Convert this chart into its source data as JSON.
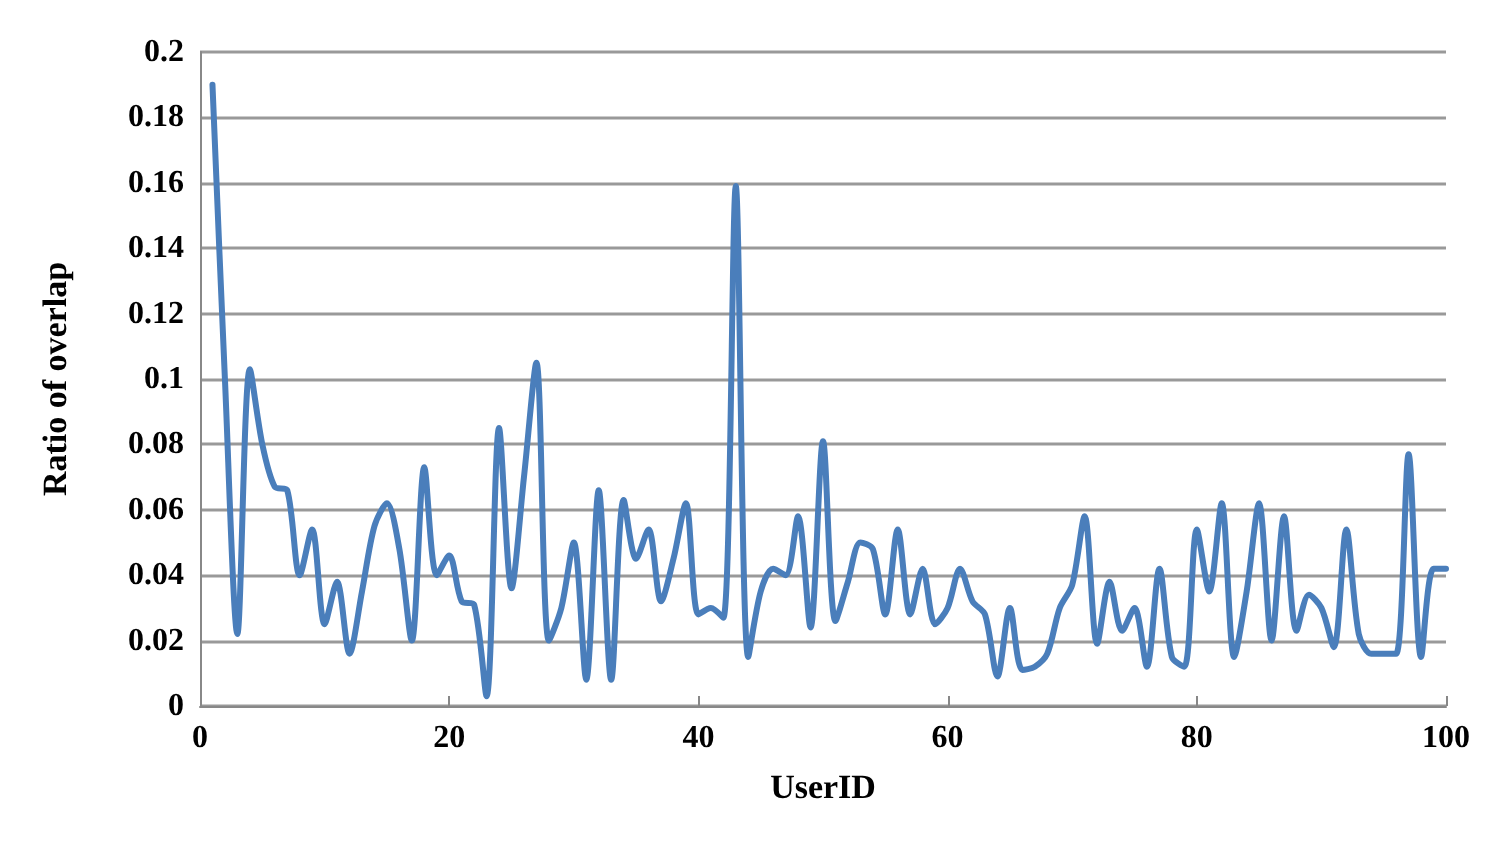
{
  "chart_data": {
    "type": "line",
    "xlabel": "UserID",
    "ylabel": "Ratio of overlap",
    "x": [
      1,
      2,
      3,
      4,
      5,
      6,
      7,
      8,
      9,
      10,
      11,
      12,
      13,
      14,
      15,
      16,
      17,
      18,
      19,
      20,
      21,
      22,
      23,
      24,
      25,
      26,
      27,
      28,
      29,
      30,
      31,
      32,
      33,
      34,
      35,
      36,
      37,
      38,
      39,
      40,
      41,
      42,
      43,
      44,
      45,
      46,
      47,
      48,
      49,
      50,
      51,
      52,
      53,
      54,
      55,
      56,
      57,
      58,
      59,
      60,
      61,
      62,
      63,
      64,
      65,
      66,
      67,
      68,
      69,
      70,
      71,
      72,
      73,
      74,
      75,
      76,
      77,
      78,
      79,
      80,
      81,
      82,
      83,
      84,
      85,
      86,
      87,
      88,
      89,
      90,
      91,
      92,
      93,
      94,
      95,
      96,
      97,
      98,
      99,
      100
    ],
    "series": [
      {
        "color": "#4a7ebb",
        "values": [
          0.19,
          0.1,
          0.022,
          0.103,
          0.08,
          0.067,
          0.066,
          0.04,
          0.054,
          0.025,
          0.038,
          0.016,
          0.035,
          0.055,
          0.062,
          0.048,
          0.02,
          0.073,
          0.04,
          0.046,
          0.032,
          0.031,
          0.003,
          0.085,
          0.036,
          0.07,
          0.105,
          0.02,
          0.03,
          0.05,
          0.008,
          0.066,
          0.008,
          0.063,
          0.045,
          0.054,
          0.032,
          0.045,
          0.062,
          0.028,
          0.03,
          0.027,
          0.159,
          0.015,
          0.035,
          0.042,
          0.04,
          0.058,
          0.024,
          0.081,
          0.026,
          0.038,
          0.05,
          0.048,
          0.028,
          0.054,
          0.028,
          0.042,
          0.025,
          0.03,
          0.042,
          0.032,
          0.028,
          0.009,
          0.03,
          0.011,
          0.012,
          0.016,
          0.03,
          0.037,
          0.058,
          0.019,
          0.038,
          0.023,
          0.03,
          0.012,
          0.042,
          0.015,
          0.012,
          0.054,
          0.035,
          0.062,
          0.015,
          0.035,
          0.062,
          0.02,
          0.058,
          0.023,
          0.034,
          0.03,
          0.018,
          0.054,
          0.022,
          0.016,
          0.016,
          0.016,
          0.077,
          0.015,
          0.042,
          0.042
        ]
      }
    ],
    "xlim": [
      0,
      100
    ],
    "xticks": [
      0,
      20,
      40,
      60,
      80,
      100
    ],
    "ylim": [
      0,
      0.2
    ],
    "yticks": [
      0,
      0.02,
      0.04,
      0.06,
      0.08,
      0.1,
      0.12,
      0.14,
      0.16,
      0.18,
      0.2
    ],
    "grid": "y",
    "marker": "none",
    "line_style": "solid"
  }
}
